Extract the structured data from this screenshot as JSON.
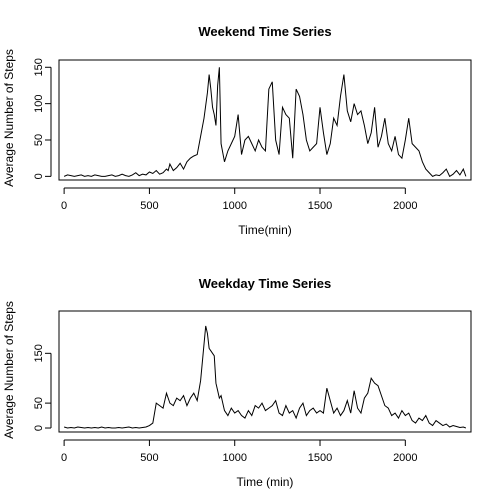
{
  "chart_data": [
    {
      "type": "line",
      "title": "Weekend Time Series",
      "xlabel": "Time(min)",
      "ylabel": "Average Number of Steps",
      "xlim": [
        -30,
        2385
      ],
      "ylim": [
        -5,
        160
      ],
      "x_ticks": [
        0,
        500,
        1000,
        1500,
        2000
      ],
      "y_ticks": [
        0,
        50,
        100,
        150
      ],
      "grid": false,
      "series": [
        {
          "color": "#000000",
          "x": [
            0,
            20,
            40,
            60,
            80,
            100,
            120,
            140,
            160,
            180,
            200,
            220,
            240,
            260,
            280,
            300,
            320,
            340,
            360,
            380,
            400,
            420,
            440,
            460,
            480,
            500,
            520,
            540,
            560,
            580,
            600,
            610,
            620,
            640,
            660,
            680,
            700,
            720,
            740,
            760,
            780,
            800,
            820,
            840,
            850,
            860,
            870,
            880,
            890,
            900,
            910,
            920,
            940,
            960,
            980,
            1000,
            1020,
            1040,
            1060,
            1080,
            1100,
            1120,
            1140,
            1160,
            1180,
            1200,
            1220,
            1240,
            1260,
            1280,
            1300,
            1320,
            1340,
            1360,
            1380,
            1400,
            1420,
            1440,
            1460,
            1480,
            1500,
            1520,
            1540,
            1560,
            1580,
            1600,
            1620,
            1640,
            1660,
            1680,
            1700,
            1720,
            1740,
            1760,
            1780,
            1800,
            1820,
            1840,
            1860,
            1880,
            1900,
            1920,
            1940,
            1960,
            1980,
            2000,
            2020,
            2040,
            2060,
            2080,
            2100,
            2120,
            2140,
            2160,
            2180,
            2200,
            2220,
            2240,
            2260,
            2280,
            2300,
            2320,
            2340,
            2355
          ],
          "values": [
            0,
            2,
            1,
            0,
            1,
            2,
            0,
            1,
            0,
            2,
            1,
            0,
            0,
            1,
            2,
            0,
            1,
            3,
            1,
            0,
            2,
            5,
            1,
            3,
            2,
            6,
            4,
            8,
            3,
            5,
            10,
            8,
            17,
            8,
            12,
            18,
            10,
            20,
            25,
            28,
            30,
            55,
            80,
            115,
            140,
            120,
            95,
            85,
            70,
            125,
            150,
            45,
            20,
            35,
            45,
            55,
            85,
            30,
            50,
            55,
            45,
            35,
            50,
            40,
            35,
            120,
            130,
            50,
            30,
            95,
            85,
            80,
            25,
            120,
            110,
            85,
            50,
            35,
            40,
            45,
            95,
            60,
            30,
            45,
            80,
            70,
            110,
            140,
            90,
            75,
            100,
            85,
            90,
            70,
            45,
            60,
            95,
            40,
            55,
            80,
            45,
            35,
            55,
            30,
            25,
            50,
            80,
            45,
            40,
            35,
            20,
            10,
            5,
            0,
            2,
            1,
            5,
            10,
            0,
            3,
            8,
            2,
            10,
            0
          ]
        }
      ]
    },
    {
      "type": "line",
      "title": "Weekday Time Series",
      "xlabel": "Time (min)",
      "ylabel": "Average Number of Steps",
      "xlim": [
        -30,
        2385
      ],
      "ylim": [
        -8,
        235
      ],
      "x_ticks": [
        0,
        500,
        1000,
        1500,
        2000
      ],
      "y_ticks": [
        0,
        50,
        150
      ],
      "grid": false,
      "series": [
        {
          "color": "#000000",
          "x": [
            0,
            20,
            40,
            60,
            80,
            100,
            120,
            140,
            160,
            180,
            200,
            220,
            240,
            260,
            280,
            300,
            320,
            340,
            360,
            380,
            400,
            420,
            440,
            460,
            480,
            500,
            520,
            540,
            560,
            580,
            600,
            620,
            640,
            660,
            680,
            700,
            720,
            740,
            760,
            780,
            800,
            815,
            830,
            840,
            850,
            860,
            870,
            880,
            890,
            900,
            910,
            920,
            940,
            960,
            980,
            1000,
            1020,
            1040,
            1060,
            1080,
            1100,
            1120,
            1140,
            1160,
            1180,
            1200,
            1220,
            1240,
            1260,
            1280,
            1300,
            1320,
            1340,
            1360,
            1380,
            1400,
            1420,
            1440,
            1460,
            1480,
            1500,
            1520,
            1540,
            1560,
            1580,
            1600,
            1620,
            1640,
            1660,
            1680,
            1700,
            1720,
            1740,
            1760,
            1780,
            1800,
            1820,
            1840,
            1860,
            1880,
            1900,
            1920,
            1940,
            1960,
            1980,
            2000,
            2020,
            2040,
            2060,
            2080,
            2100,
            2120,
            2140,
            2160,
            2180,
            2200,
            2220,
            2240,
            2260,
            2280,
            2300,
            2320,
            2340,
            2355
          ],
          "values": [
            2,
            0,
            1,
            0,
            2,
            1,
            0,
            1,
            0,
            1,
            0,
            2,
            0,
            1,
            0,
            0,
            1,
            0,
            1,
            2,
            0,
            1,
            0,
            1,
            2,
            5,
            10,
            50,
            45,
            40,
            70,
            50,
            45,
            60,
            55,
            65,
            45,
            60,
            70,
            55,
            95,
            150,
            205,
            190,
            160,
            155,
            150,
            145,
            90,
            75,
            60,
            65,
            35,
            25,
            40,
            30,
            35,
            25,
            20,
            35,
            25,
            45,
            40,
            50,
            35,
            40,
            45,
            55,
            30,
            25,
            45,
            30,
            35,
            20,
            40,
            50,
            25,
            35,
            40,
            30,
            35,
            30,
            80,
            55,
            30,
            40,
            25,
            35,
            55,
            30,
            75,
            40,
            30,
            60,
            70,
            100,
            90,
            85,
            65,
            45,
            40,
            25,
            30,
            20,
            35,
            25,
            30,
            15,
            10,
            20,
            15,
            25,
            10,
            5,
            15,
            10,
            5,
            8,
            2,
            5,
            3,
            1,
            2,
            0
          ]
        }
      ]
    }
  ]
}
